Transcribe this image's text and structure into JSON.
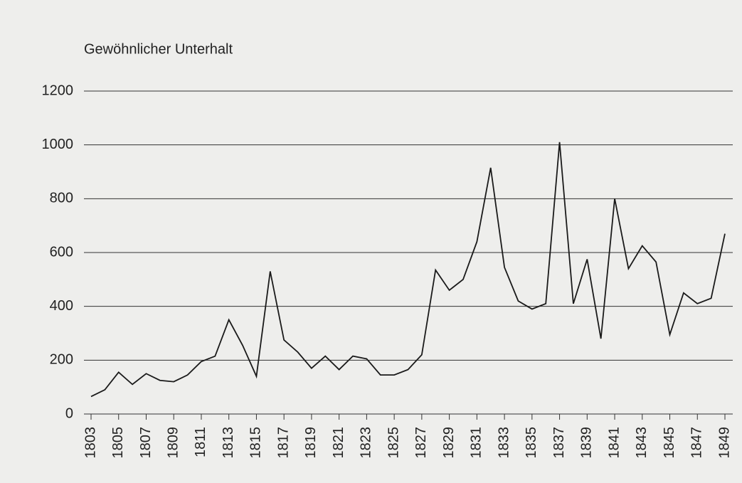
{
  "chart_data": {
    "type": "line",
    "title": "Gewöhnlicher Unterhalt",
    "x": [
      1803,
      1804,
      1805,
      1806,
      1807,
      1808,
      1809,
      1810,
      1811,
      1812,
      1813,
      1814,
      1815,
      1816,
      1817,
      1818,
      1819,
      1820,
      1821,
      1822,
      1823,
      1824,
      1825,
      1826,
      1827,
      1828,
      1829,
      1830,
      1831,
      1832,
      1833,
      1834,
      1835,
      1836,
      1837,
      1838,
      1839,
      1840,
      1841,
      1842,
      1843,
      1844,
      1845,
      1846,
      1847,
      1848,
      1849
    ],
    "values": [
      65,
      90,
      155,
      110,
      150,
      125,
      120,
      145,
      195,
      215,
      350,
      255,
      140,
      530,
      275,
      230,
      170,
      215,
      165,
      215,
      205,
      145,
      145,
      165,
      220,
      535,
      460,
      500,
      640,
      915,
      545,
      420,
      390,
      410,
      1010,
      410,
      575,
      280,
      800,
      540,
      625,
      565,
      295,
      450,
      410,
      430,
      670
    ],
    "color": "#1a1a1a",
    "xlim": [
      1803,
      1849
    ],
    "xticks": [
      1803,
      1805,
      1807,
      1809,
      1811,
      1813,
      1815,
      1817,
      1819,
      1821,
      1823,
      1825,
      1827,
      1829,
      1831,
      1833,
      1835,
      1837,
      1839,
      1841,
      1843,
      1845,
      1847,
      1849
    ],
    "ylim": [
      0,
      1200
    ],
    "yticks": [
      0,
      200,
      400,
      600,
      800,
      1000,
      1200
    ],
    "grid": true
  }
}
